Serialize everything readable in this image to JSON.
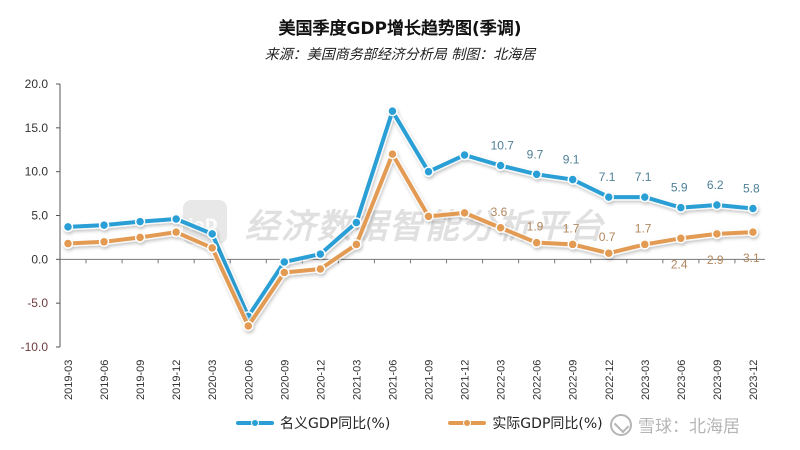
{
  "header": {
    "title": "美国季度GDP增长趋势图(季调)",
    "subtitle": "来源：美国商务部经济分析局  制图：北海居"
  },
  "watermark": {
    "text": "经济数据智能分析平台",
    "badge": "ioD"
  },
  "legend": {
    "items": [
      {
        "label": "名义GDP同比(%)",
        "color": "#2a9fd6"
      },
      {
        "label": "实际GDP同比(%)",
        "color": "#e39a52"
      }
    ]
  },
  "brand": {
    "text": "雪球：北海居"
  },
  "chart_data": {
    "type": "line",
    "title": "美国季度GDP增长趋势图(季调)",
    "subtitle": "来源：美国商务部经济分析局  制图：北海居",
    "xlabel": "",
    "ylabel": "",
    "ylim": [
      -10,
      20
    ],
    "yticks": [
      -10.0,
      -5.0,
      0.0,
      5.0,
      10.0,
      15.0,
      20.0
    ],
    "ytick_labels": [
      "-10.0",
      "-5.0",
      "0.0",
      "5.0",
      "10.0",
      "15.0",
      "20.0"
    ],
    "grid": false,
    "legend_position": "bottom",
    "categories": [
      "2019-03",
      "2019-06",
      "2019-09",
      "2019-12",
      "2020-03",
      "2020-06",
      "2020-09",
      "2020-12",
      "2021-03",
      "2021-06",
      "2021-09",
      "2021-12",
      "2022-03",
      "2022-06",
      "2022-09",
      "2022-12",
      "2023-03",
      "2023-06",
      "2023-09",
      "2023-12"
    ],
    "series": [
      {
        "name": "名义GDP同比(%)",
        "color": "#2a9fd6",
        "values": [
          3.7,
          3.9,
          4.3,
          4.6,
          2.9,
          -6.5,
          -0.3,
          0.6,
          4.2,
          16.9,
          10.0,
          11.9,
          10.7,
          9.7,
          9.1,
          7.1,
          7.1,
          5.9,
          6.2,
          5.8
        ],
        "labeled_from_index": 12
      },
      {
        "name": "实际GDP同比(%)",
        "color": "#e39a52",
        "values": [
          1.8,
          2.0,
          2.5,
          3.1,
          1.3,
          -7.6,
          -1.5,
          -1.1,
          1.7,
          12.0,
          4.9,
          5.3,
          3.6,
          1.9,
          1.7,
          0.7,
          1.7,
          2.4,
          2.9,
          3.1
        ],
        "labeled_from_index": 12
      }
    ]
  }
}
